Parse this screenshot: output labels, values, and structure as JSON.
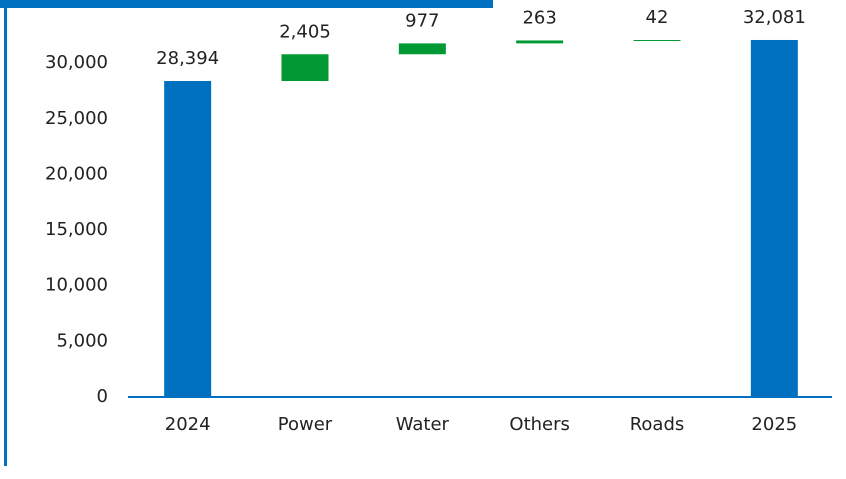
{
  "chart_data": {
    "type": "waterfall",
    "categories": [
      "2024",
      "Power",
      "Water",
      "Others",
      "Roads",
      "2025"
    ],
    "values": [
      28394,
      2405,
      977,
      263,
      42,
      32081
    ],
    "value_labels": [
      "28,394",
      "2,405",
      "977",
      "263",
      "42",
      "32,081"
    ],
    "colors": [
      "#0070c0",
      "#009933",
      "#009933",
      "#009933",
      "#009933",
      "#0070c0"
    ],
    "ylim": [
      0,
      35000
    ],
    "yticks": [
      0,
      {
        "value": 5000,
        "label": "5,000"
      },
      {
        "value": 10000,
        "label": "10,000"
      },
      {
        "value": 15000,
        "label": "15,000"
      },
      {
        "value": 20000,
        "label": "20,000"
      },
      {
        "value": 25000,
        "label": "25,000"
      },
      {
        "value": 30000,
        "label": "30,000"
      }
    ]
  }
}
